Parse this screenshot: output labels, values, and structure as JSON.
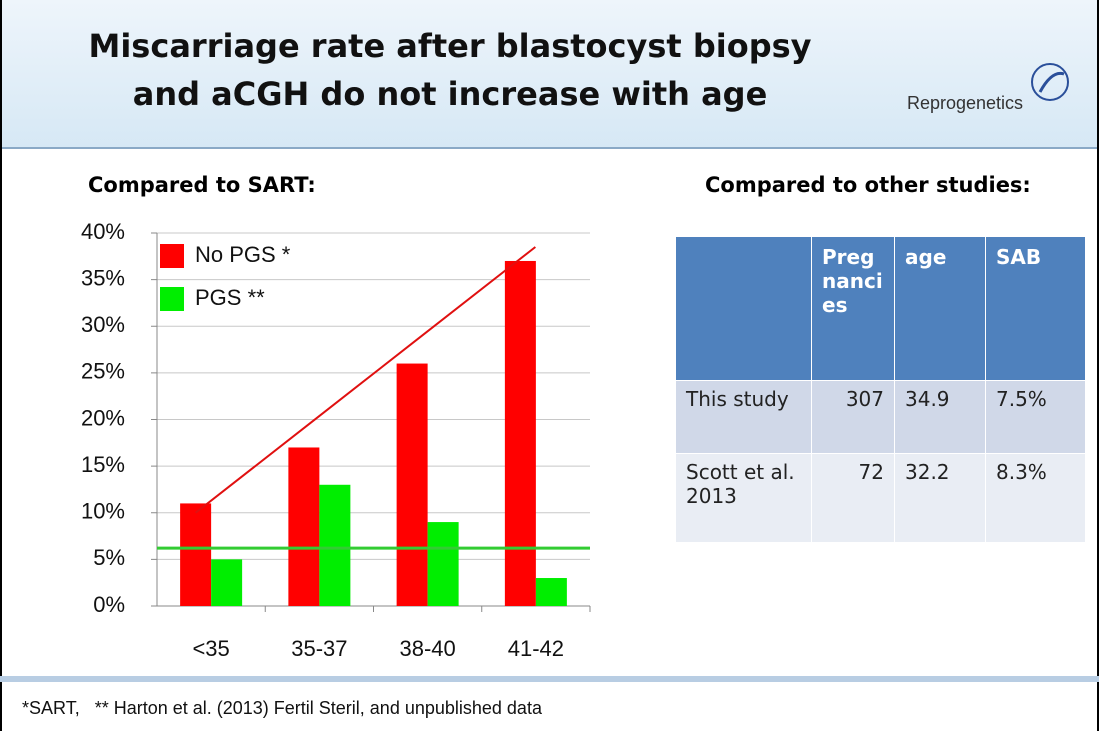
{
  "title": "Miscarriage rate after blastocyst biopsy and aCGH do not increase with age",
  "logo": "Reprogenetics",
  "left_heading": "Compared to SART:",
  "right_heading": "Compared to other studies:",
  "table": {
    "header": [
      "Pregnancies",
      "age",
      "SAB"
    ],
    "rows": [
      [
        "This study",
        307,
        34.9,
        "7.5%"
      ],
      [
        "Scott et al. 2013",
        72,
        32.2,
        "8.3%"
      ]
    ]
  },
  "footnote": "*SART,   ** Harton et al. (2013) Fertil Steril, and unpublished data",
  "chart_data": {
    "type": "bar",
    "categories": [
      "<35",
      "35-37",
      "38-40",
      "41-42"
    ],
    "series": [
      {
        "name": "No PGS *",
        "color": "#ff0000",
        "values": [
          11,
          17,
          26,
          37
        ]
      },
      {
        "name": "PGS **",
        "color": "#00ee00",
        "values": [
          5,
          13,
          9,
          3
        ]
      }
    ],
    "ylim": [
      0,
      40
    ],
    "yticks": [
      {
        "value": 0,
        "label": "0%"
      },
      {
        "value": 5,
        "label": "5%"
      },
      {
        "value": 10,
        "label": "10%"
      },
      {
        "value": 15,
        "label": "15%"
      },
      {
        "value": 20,
        "label": "20%"
      },
      {
        "value": 25,
        "label": "25%"
      },
      {
        "value": 30,
        "label": "30%"
      },
      {
        "value": 35,
        "label": "35%"
      },
      {
        "value": 40,
        "label": "40%"
      }
    ],
    "grid": true,
    "trend_line": {
      "color": "#e01010",
      "values": [
        10,
        19.5,
        29,
        38.5
      ]
    },
    "reference_line": {
      "color": "#33cc33",
      "value": 6.2
    }
  }
}
